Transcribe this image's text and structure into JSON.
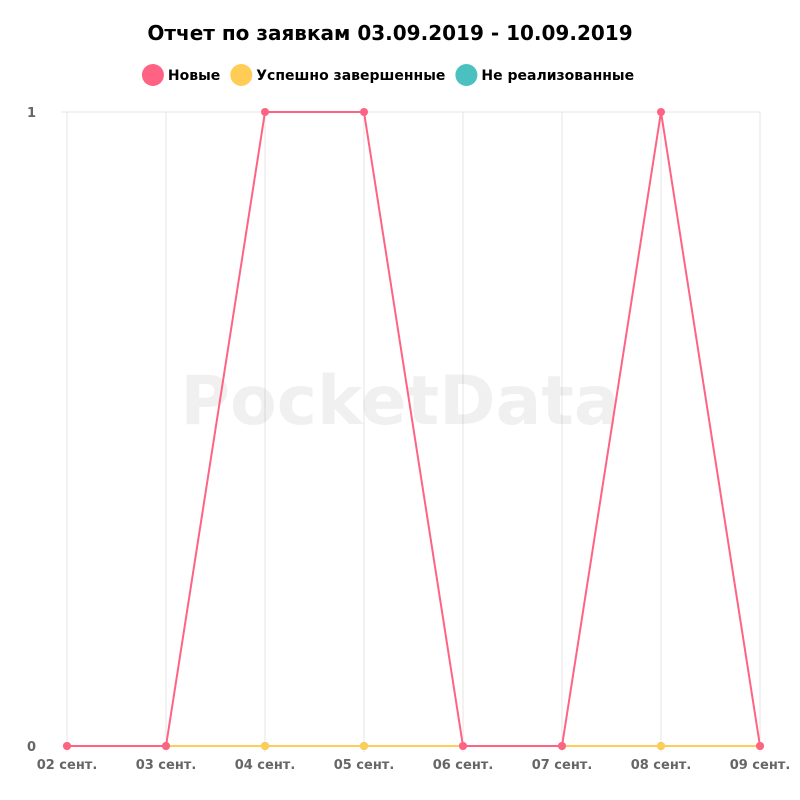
{
  "chart_data": {
    "type": "line",
    "title": "Отчет по заявкам 03.09.2019 - 10.09.2019",
    "categories": [
      "02 сент.",
      "03 сент.",
      "04 сент.",
      "05 сент.",
      "06 сент.",
      "07 сент.",
      "08 сент.",
      "09 сент."
    ],
    "series": [
      {
        "name": "Новые",
        "color": "#ff6384",
        "values": [
          0,
          0,
          1,
          1,
          0,
          0,
          1,
          0
        ]
      },
      {
        "name": "Успешно завершенные",
        "color": "#ffcd56",
        "values": [
          0,
          0,
          0,
          0,
          0,
          0,
          0,
          0
        ]
      },
      {
        "name": "Не реализованные",
        "color": "#4bc0c0",
        "values": [
          0,
          0,
          0,
          0,
          0,
          0,
          0,
          0
        ]
      }
    ],
    "ylim": [
      0,
      1
    ],
    "yticks": [
      0,
      1
    ],
    "xlabel": "",
    "ylabel": "",
    "grid": true,
    "legend_position": "top"
  },
  "watermark": "PocketData"
}
